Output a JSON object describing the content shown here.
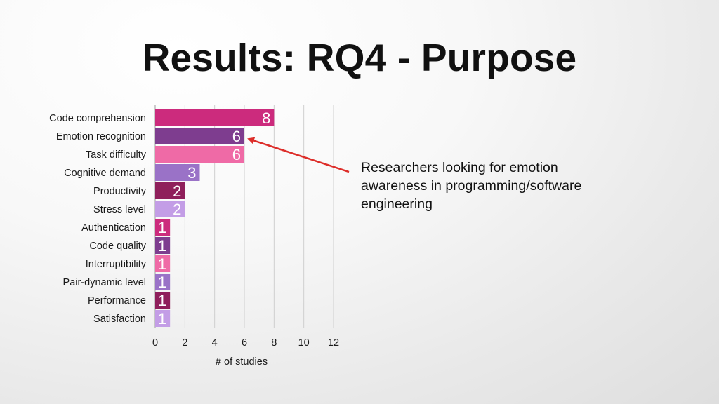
{
  "slide": {
    "title": "Results: RQ4 - Purpose"
  },
  "annotation": {
    "text": "Researchers looking for emotion awareness in programming/software engineering"
  },
  "colors": {
    "arrow": "#dd2e2a",
    "gridline": "#cfcfcf",
    "axis": "#9a9a9a"
  },
  "chart_data": {
    "type": "bar",
    "orientation": "horizontal",
    "title": "",
    "xlabel": "# of studies",
    "ylabel": "",
    "xlim": [
      0,
      12
    ],
    "xticks": [
      0,
      2,
      4,
      6,
      8,
      10,
      12
    ],
    "grid": true,
    "legend": "none",
    "categories": [
      "Code comprehension",
      "Emotion recognition",
      "Task difficulty",
      "Cognitive demand",
      "Productivity",
      "Stress level",
      "Authentication",
      "Code quality",
      "Interruptibility",
      "Pair-dynamic level",
      "Performance",
      "Satisfaction"
    ],
    "values": [
      8,
      6,
      6,
      3,
      2,
      2,
      1,
      1,
      1,
      1,
      1,
      1
    ],
    "bar_colors": [
      "#cc2b7d",
      "#7e3d8f",
      "#ef6aa6",
      "#9a72c7",
      "#8f1f5b",
      "#c39de6",
      "#cc2b7d",
      "#7e3d8f",
      "#ef6aa6",
      "#9a72c7",
      "#8f1f5b",
      "#c39de6"
    ],
    "data_labels": [
      "8",
      "6",
      "6",
      "3",
      "2",
      "2",
      "1",
      "1",
      "1",
      "1",
      "1",
      "1"
    ],
    "annotation_points_to": "Emotion recognition"
  }
}
